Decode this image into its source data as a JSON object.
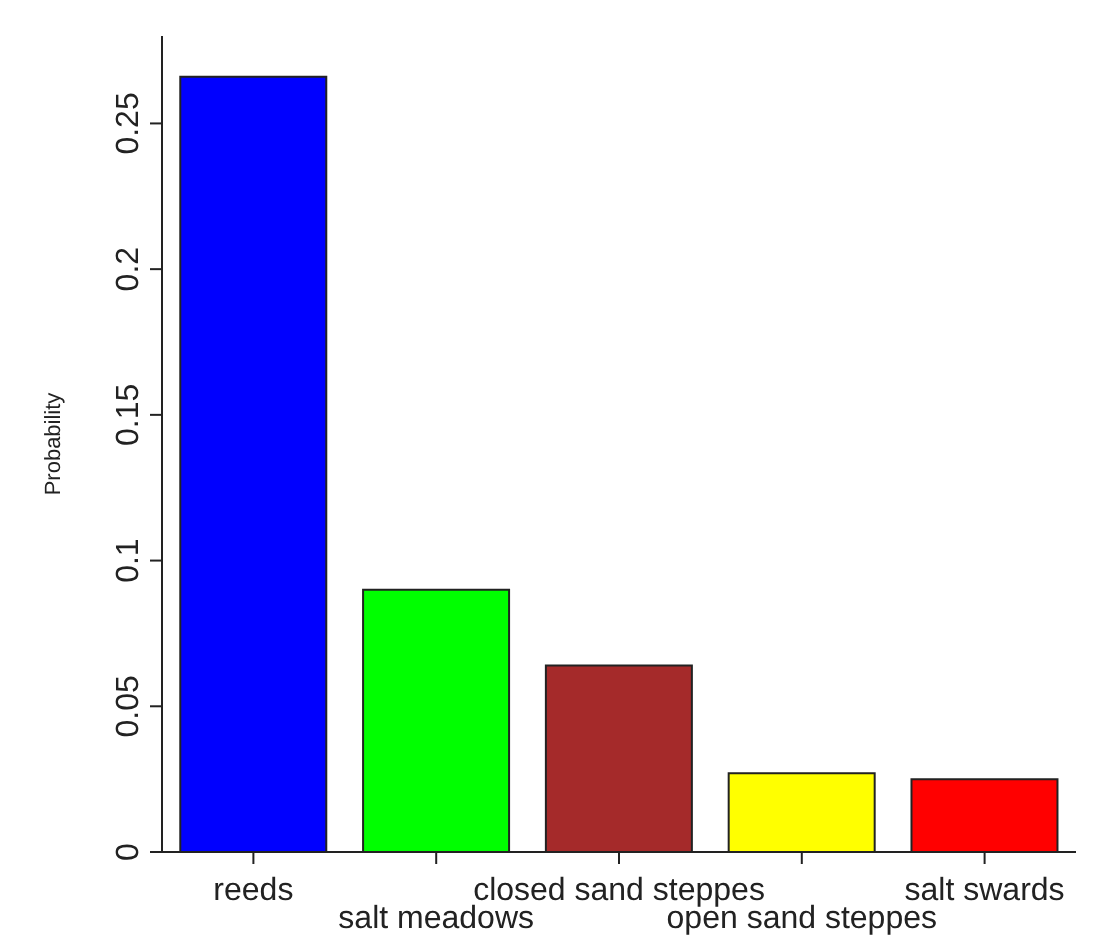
{
  "chart_data": {
    "type": "bar",
    "ylabel": "Probability",
    "categories": [
      "reeds",
      "salt meadows",
      "closed sand steppes",
      "open sand steppes",
      "salt swards"
    ],
    "values": [
      0.266,
      0.09,
      0.064,
      0.027,
      0.025
    ],
    "colors": [
      "#0000ff",
      "#00ff00",
      "#a52a2a",
      "#ffff00",
      "#ff0000"
    ],
    "ylim": [
      0,
      0.28
    ],
    "yticks": [
      0,
      0.05,
      0.1,
      0.15,
      0.2,
      0.25
    ],
    "grid": false
  }
}
